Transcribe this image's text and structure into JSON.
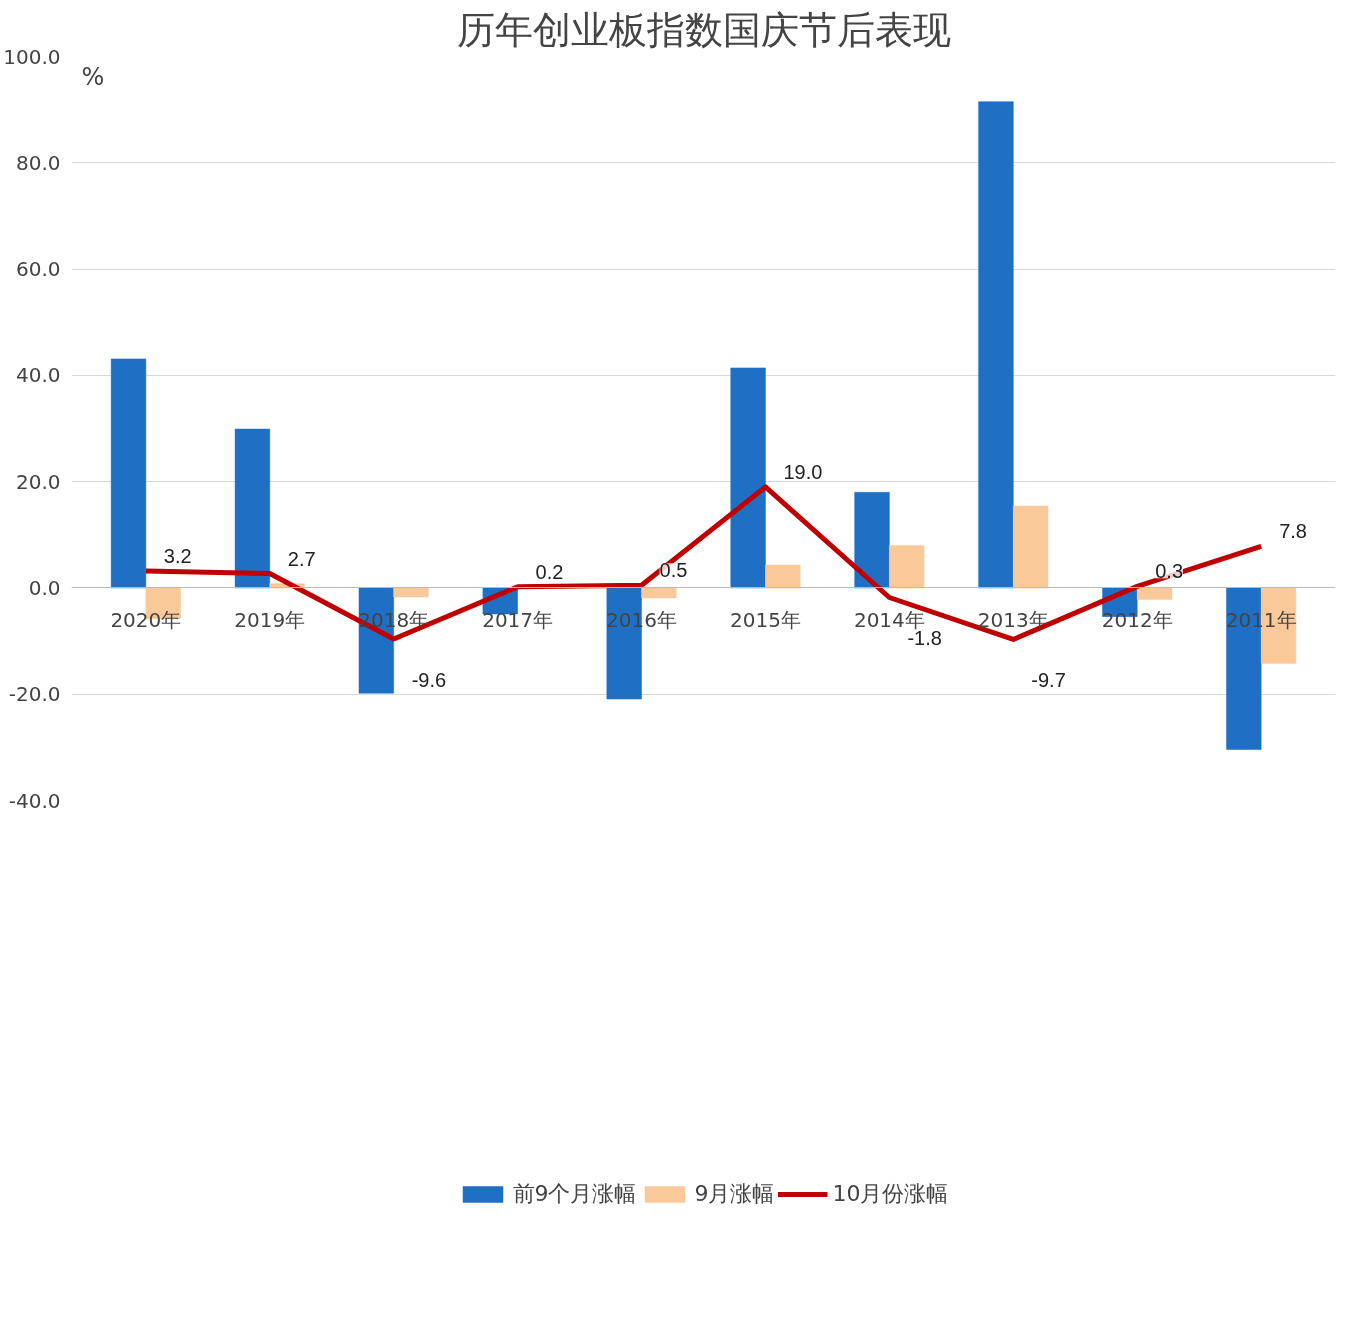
{
  "chart_data": {
    "type": "bar",
    "title": "历年创业板指数国庆节后表现",
    "ylabel": "%",
    "categories": [
      "2020年",
      "2019年",
      "2018年",
      "2017年",
      "2016年",
      "2015年",
      "2014年",
      "2013年",
      "2012年",
      "2011年"
    ],
    "series": [
      {
        "name": "前9个月涨幅",
        "color": "#1f6fc5",
        "values": [
          43.1,
          29.9,
          -19.8,
          -4.9,
          -20.9,
          41.4,
          18.0,
          91.5,
          -5.4,
          -30.4
        ]
      },
      {
        "name": "9月涨幅",
        "color": "#f9c99a",
        "values": [
          -5.8,
          0.8,
          -1.7,
          0.0,
          -1.9,
          4.3,
          8.0,
          15.4,
          -2.2,
          -14.2
        ]
      },
      {
        "name": "10月份涨幅",
        "type": "line",
        "color": "#c00000",
        "values": [
          3.2,
          2.7,
          -9.6,
          0.2,
          0.5,
          19.0,
          -1.8,
          -9.7,
          0.3,
          7.8
        ],
        "value_labels": [
          "3.2",
          "2.7",
          "-9.6",
          "0.2",
          "0.5",
          "19.0",
          "-1.8",
          "-9.7",
          "0.3",
          "7.8"
        ]
      }
    ],
    "ylim": [
      -40,
      100
    ],
    "yticks": [
      {
        "value": -40,
        "label": "-40.0"
      },
      {
        "value": -20,
        "label": "-20.0"
      },
      {
        "value": 0,
        "label": "0.0"
      },
      {
        "value": 20,
        "label": "20.0"
      },
      {
        "value": 40,
        "label": "40.0"
      },
      {
        "value": 60,
        "label": "60.0"
      },
      {
        "value": 80,
        "label": "80.0"
      },
      {
        "value": 100,
        "label": "100.0"
      }
    ],
    "grid": "y",
    "legend": "bottom"
  }
}
